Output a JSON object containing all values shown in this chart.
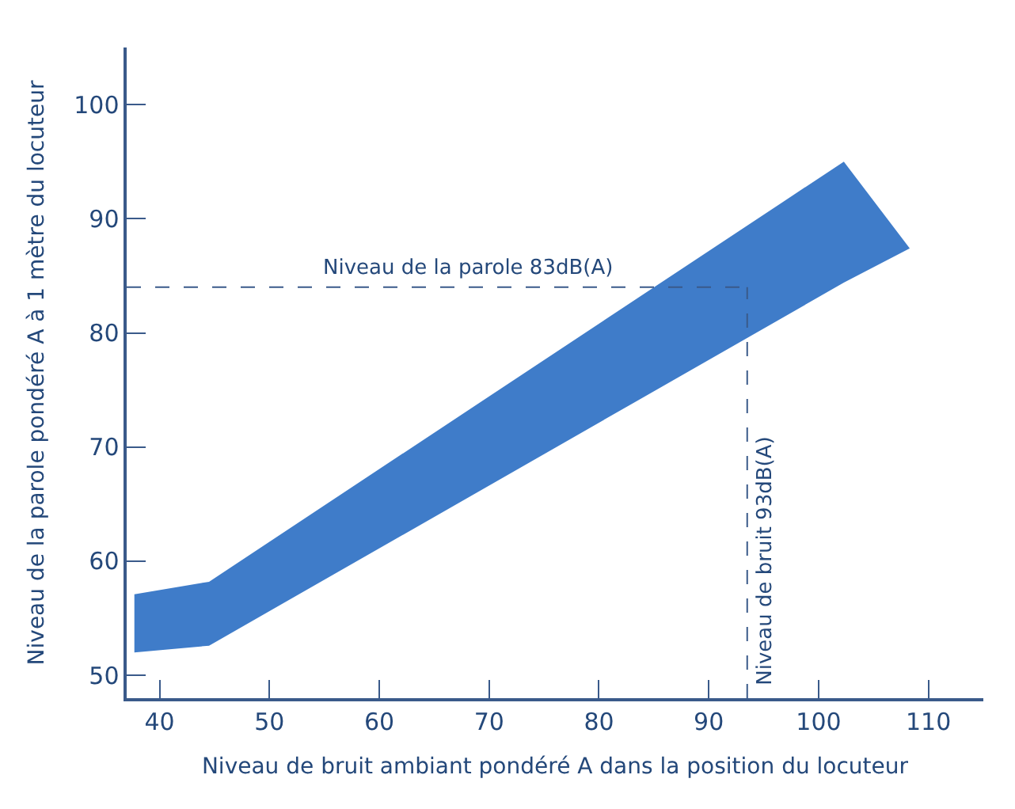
{
  "chart_data": {
    "type": "area",
    "xlabel": "Niveau de bruit ambiant pondéré A dans la position du locuteur",
    "ylabel": "Niveau de la parole pondéré A à 1 mètre du locuteur",
    "series": [
      {
        "color": "#3f7cc9",
        "x": [
          37.7,
          44.5,
          102.3,
          108.3
        ],
        "values": [
          null,
          null,
          null,
          null
        ],
        "upper": [
          57.1,
          58.2,
          95,
          87.4
        ],
        "lower": [
          52,
          52.6,
          84.4,
          87.4
        ]
      }
    ],
    "xlim": [
      37,
      115
    ],
    "xticks": [
      40,
      50,
      60,
      70,
      80,
      90,
      100,
      110
    ],
    "ylim": [
      48,
      105
    ],
    "yticks": [
      50,
      60,
      70,
      80,
      90,
      100
    ],
    "ref_lines": [
      {
        "axis": "y",
        "value": 84,
        "label": "Niveau de la parole 83dB(A)",
        "line_style": "dashed",
        "color": "#3a5a8a"
      },
      {
        "axis": "x",
        "value": 93.5,
        "label": "Niveau de bruit 93dB(A)",
        "line_style": "dashed",
        "color": "#3a5a8a"
      }
    ]
  }
}
